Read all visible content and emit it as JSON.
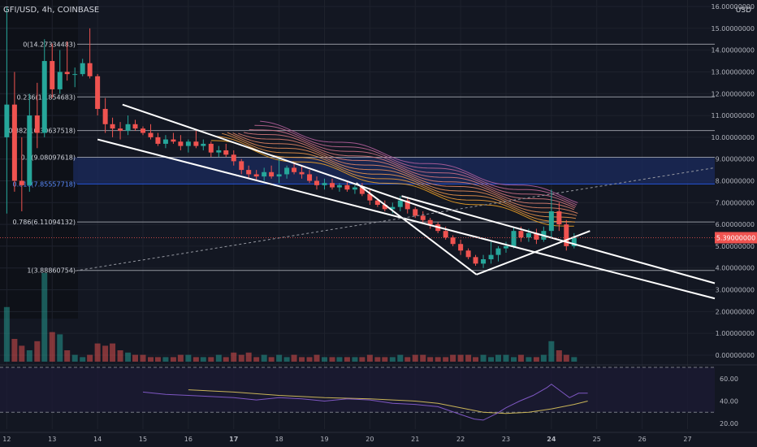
{
  "header": {
    "symbol_label": "GFI/USD, 4h, COINBASE",
    "currency": "USD"
  },
  "colors": {
    "background": "#131722",
    "up": "#26a69a",
    "down": "#ef5350",
    "grid": "#1e222d",
    "fib_line": "#b2b5be",
    "fib_label": "#d1d4dc",
    "fib_label_highlight": "#2962ff",
    "fib_zone": "#1b2b5e",
    "price_tag": "#ef5350",
    "rsi_line": "#7e57c2",
    "rsi_ma": "#c9b458",
    "rsi_band": "#1c1a33",
    "trendline": "#ffffff"
  },
  "price_tag": {
    "value": 5.39,
    "label": "5.39000000"
  },
  "chart_data": {
    "type": "candlestick",
    "title": "GFI/USD, 4h, COINBASE",
    "price_axis": {
      "ticks": [
        {
          "v": 16,
          "label": "16.00000000"
        },
        {
          "v": 15,
          "label": "15.00000000"
        },
        {
          "v": 14,
          "label": "14.00000000"
        },
        {
          "v": 13,
          "label": "13.00000000"
        },
        {
          "v": 12,
          "label": "12.00000000"
        },
        {
          "v": 11,
          "label": "11.00000000"
        },
        {
          "v": 10,
          "label": "10.00000000"
        },
        {
          "v": 9,
          "label": "9.00000000"
        },
        {
          "v": 8,
          "label": "8.00000000"
        },
        {
          "v": 7,
          "label": "7.00000000"
        },
        {
          "v": 6,
          "label": "6.00000000"
        },
        {
          "v": 5,
          "label": "5.00000000"
        },
        {
          "v": 4,
          "label": "4.00000000"
        },
        {
          "v": 3,
          "label": "3.00000000"
        },
        {
          "v": 2,
          "label": "2.00000000"
        },
        {
          "v": 1,
          "label": "1.00000000"
        },
        {
          "v": 0,
          "label": "0.00000000"
        }
      ],
      "range": [
        -0.3,
        16.3
      ]
    },
    "time_axis": {
      "labels": [
        {
          "d": 12,
          "label": "12"
        },
        {
          "d": 13,
          "label": "13"
        },
        {
          "d": 14,
          "label": "14"
        },
        {
          "d": 15,
          "label": "15"
        },
        {
          "d": 16,
          "label": "16"
        },
        {
          "d": 17,
          "label": "17",
          "bold": true
        },
        {
          "d": 18,
          "label": "18"
        },
        {
          "d": 19,
          "label": "19"
        },
        {
          "d": 20,
          "label": "20"
        },
        {
          "d": 21,
          "label": "21"
        },
        {
          "d": 22,
          "label": "22"
        },
        {
          "d": 23,
          "label": "23"
        },
        {
          "d": 24,
          "label": "24",
          "bold": true
        },
        {
          "d": 25,
          "label": "25"
        },
        {
          "d": 26,
          "label": "26"
        },
        {
          "d": 27,
          "label": "27"
        }
      ],
      "range": [
        11.85,
        27.6
      ]
    },
    "fib_levels": [
      {
        "ratio": "0",
        "value": 14.27334483,
        "label": "0(14.27334483)"
      },
      {
        "ratio": "0.236",
        "value": 11.85,
        "label": "0.236(11.854683)"
      },
      {
        "ratio": "0.382",
        "value": 10.30637518,
        "label": "0.382(10.30637518)"
      },
      {
        "ratio": "0.5",
        "value": 9.08097618,
        "label": "0.5(9.08097618)"
      },
      {
        "ratio": "0.618",
        "value": 7.85557718,
        "label": "0.618(7.85557718)",
        "highlight": true
      },
      {
        "ratio": "0.786",
        "value": 6.11094132,
        "label": "0.786(6.11094132)"
      },
      {
        "ratio": "1",
        "value": 3.88860754,
        "label": "1(3.88860754)"
      }
    ],
    "candles": [
      {
        "t": 12.0,
        "o": 10.0,
        "h": 16.0,
        "l": 6.5,
        "c": 11.5
      },
      {
        "t": 12.17,
        "o": 11.5,
        "h": 13.0,
        "l": 7.5,
        "c": 8.0
      },
      {
        "t": 12.33,
        "o": 8.0,
        "h": 10.0,
        "l": 6.6,
        "c": 7.8
      },
      {
        "t": 12.5,
        "o": 7.8,
        "h": 12.0,
        "l": 7.5,
        "c": 11.0
      },
      {
        "t": 12.67,
        "o": 11.0,
        "h": 12.5,
        "l": 9.5,
        "c": 10.2
      },
      {
        "t": 12.83,
        "o": 10.2,
        "h": 14.5,
        "l": 10.0,
        "c": 13.5
      },
      {
        "t": 13.0,
        "o": 13.5,
        "h": 14.3,
        "l": 11.8,
        "c": 12.2
      },
      {
        "t": 13.17,
        "o": 12.2,
        "h": 14.0,
        "l": 12.0,
        "c": 13.0
      },
      {
        "t": 13.33,
        "o": 13.0,
        "h": 14.4,
        "l": 12.6,
        "c": 12.9
      },
      {
        "t": 13.5,
        "o": 12.9,
        "h": 13.2,
        "l": 12.3,
        "c": 12.9
      },
      {
        "t": 13.67,
        "o": 12.9,
        "h": 13.6,
        "l": 12.8,
        "c": 13.4
      },
      {
        "t": 13.83,
        "o": 13.4,
        "h": 15.0,
        "l": 12.7,
        "c": 12.8
      },
      {
        "t": 14.0,
        "o": 12.8,
        "h": 12.9,
        "l": 11.0,
        "c": 11.3
      },
      {
        "t": 14.17,
        "o": 11.3,
        "h": 11.8,
        "l": 10.2,
        "c": 10.6
      },
      {
        "t": 14.33,
        "o": 10.6,
        "h": 10.9,
        "l": 10.0,
        "c": 10.4
      },
      {
        "t": 14.5,
        "o": 10.4,
        "h": 10.7,
        "l": 9.9,
        "c": 10.3
      },
      {
        "t": 14.67,
        "o": 10.3,
        "h": 11.0,
        "l": 10.1,
        "c": 10.6
      },
      {
        "t": 14.83,
        "o": 10.6,
        "h": 10.8,
        "l": 10.3,
        "c": 10.4
      },
      {
        "t": 15.0,
        "o": 10.4,
        "h": 10.5,
        "l": 10.1,
        "c": 10.2
      },
      {
        "t": 15.17,
        "o": 10.2,
        "h": 10.6,
        "l": 9.9,
        "c": 10.0
      },
      {
        "t": 15.33,
        "o": 10.0,
        "h": 10.2,
        "l": 9.6,
        "c": 9.7
      },
      {
        "t": 15.5,
        "o": 9.7,
        "h": 10.1,
        "l": 9.5,
        "c": 9.9
      },
      {
        "t": 15.67,
        "o": 9.9,
        "h": 10.2,
        "l": 9.7,
        "c": 9.8
      },
      {
        "t": 15.83,
        "o": 9.8,
        "h": 10.1,
        "l": 9.4,
        "c": 9.6
      },
      {
        "t": 16.0,
        "o": 9.6,
        "h": 9.9,
        "l": 9.3,
        "c": 9.8
      },
      {
        "t": 16.17,
        "o": 9.8,
        "h": 10.3,
        "l": 9.5,
        "c": 9.6
      },
      {
        "t": 16.33,
        "o": 9.6,
        "h": 9.9,
        "l": 9.4,
        "c": 9.7
      },
      {
        "t": 16.5,
        "o": 9.7,
        "h": 9.8,
        "l": 9.1,
        "c": 9.3
      },
      {
        "t": 16.67,
        "o": 9.3,
        "h": 9.6,
        "l": 9.1,
        "c": 9.4
      },
      {
        "t": 16.83,
        "o": 9.4,
        "h": 9.7,
        "l": 9.1,
        "c": 9.2
      },
      {
        "t": 17.0,
        "o": 9.2,
        "h": 9.4,
        "l": 8.7,
        "c": 8.9
      },
      {
        "t": 17.17,
        "o": 8.9,
        "h": 9.0,
        "l": 8.3,
        "c": 8.5
      },
      {
        "t": 17.33,
        "o": 8.5,
        "h": 8.7,
        "l": 8.1,
        "c": 8.3
      },
      {
        "t": 17.5,
        "o": 8.3,
        "h": 8.5,
        "l": 8.0,
        "c": 8.2
      },
      {
        "t": 17.67,
        "o": 8.2,
        "h": 8.6,
        "l": 8.0,
        "c": 8.4
      },
      {
        "t": 17.83,
        "o": 8.4,
        "h": 8.7,
        "l": 8.1,
        "c": 8.2
      },
      {
        "t": 18.0,
        "o": 8.2,
        "h": 9.1,
        "l": 7.9,
        "c": 8.3
      },
      {
        "t": 18.17,
        "o": 8.3,
        "h": 8.7,
        "l": 8.1,
        "c": 8.6
      },
      {
        "t": 18.33,
        "o": 8.6,
        "h": 8.8,
        "l": 8.3,
        "c": 8.4
      },
      {
        "t": 18.5,
        "o": 8.4,
        "h": 8.7,
        "l": 8.1,
        "c": 8.3
      },
      {
        "t": 18.67,
        "o": 8.3,
        "h": 8.5,
        "l": 7.9,
        "c": 8.0
      },
      {
        "t": 18.83,
        "o": 8.0,
        "h": 8.2,
        "l": 7.6,
        "c": 7.8
      },
      {
        "t": 19.0,
        "o": 7.8,
        "h": 8.1,
        "l": 7.6,
        "c": 7.9
      },
      {
        "t": 19.17,
        "o": 7.9,
        "h": 8.1,
        "l": 7.6,
        "c": 7.7
      },
      {
        "t": 19.33,
        "o": 7.7,
        "h": 7.9,
        "l": 7.5,
        "c": 7.8
      },
      {
        "t": 19.5,
        "o": 7.8,
        "h": 8.0,
        "l": 7.5,
        "c": 7.6
      },
      {
        "t": 19.67,
        "o": 7.6,
        "h": 7.8,
        "l": 7.4,
        "c": 7.7
      },
      {
        "t": 19.83,
        "o": 7.7,
        "h": 7.9,
        "l": 7.3,
        "c": 7.4
      },
      {
        "t": 20.0,
        "o": 7.4,
        "h": 7.6,
        "l": 6.9,
        "c": 7.1
      },
      {
        "t": 20.17,
        "o": 7.1,
        "h": 7.2,
        "l": 6.8,
        "c": 6.9
      },
      {
        "t": 20.33,
        "o": 6.9,
        "h": 7.1,
        "l": 6.6,
        "c": 6.7
      },
      {
        "t": 20.5,
        "o": 6.7,
        "h": 7.0,
        "l": 6.5,
        "c": 6.8
      },
      {
        "t": 20.67,
        "o": 6.8,
        "h": 7.3,
        "l": 6.6,
        "c": 7.1
      },
      {
        "t": 20.83,
        "o": 7.1,
        "h": 7.2,
        "l": 6.5,
        "c": 6.7
      },
      {
        "t": 21.0,
        "o": 6.7,
        "h": 6.8,
        "l": 6.3,
        "c": 6.4
      },
      {
        "t": 21.17,
        "o": 6.4,
        "h": 6.6,
        "l": 6.1,
        "c": 6.2
      },
      {
        "t": 21.33,
        "o": 6.2,
        "h": 6.3,
        "l": 5.8,
        "c": 6.0
      },
      {
        "t": 21.5,
        "o": 6.0,
        "h": 6.1,
        "l": 5.6,
        "c": 5.7
      },
      {
        "t": 21.67,
        "o": 5.7,
        "h": 5.9,
        "l": 5.3,
        "c": 5.4
      },
      {
        "t": 21.83,
        "o": 5.4,
        "h": 5.5,
        "l": 5.0,
        "c": 5.1
      },
      {
        "t": 22.0,
        "o": 5.1,
        "h": 5.3,
        "l": 4.6,
        "c": 4.8
      },
      {
        "t": 22.17,
        "o": 4.8,
        "h": 4.9,
        "l": 4.4,
        "c": 4.5
      },
      {
        "t": 22.33,
        "o": 4.5,
        "h": 4.6,
        "l": 4.1,
        "c": 4.2
      },
      {
        "t": 22.5,
        "o": 4.2,
        "h": 4.6,
        "l": 4.0,
        "c": 4.4
      },
      {
        "t": 22.67,
        "o": 4.4,
        "h": 5.2,
        "l": 4.2,
        "c": 4.6
      },
      {
        "t": 22.83,
        "o": 4.6,
        "h": 5.0,
        "l": 4.3,
        "c": 4.9
      },
      {
        "t": 23.0,
        "o": 4.9,
        "h": 5.2,
        "l": 4.7,
        "c": 5.0
      },
      {
        "t": 23.17,
        "o": 5.0,
        "h": 5.9,
        "l": 4.9,
        "c": 5.7
      },
      {
        "t": 23.33,
        "o": 5.7,
        "h": 5.9,
        "l": 5.2,
        "c": 5.4
      },
      {
        "t": 23.5,
        "o": 5.4,
        "h": 5.8,
        "l": 5.2,
        "c": 5.6
      },
      {
        "t": 23.67,
        "o": 5.6,
        "h": 5.8,
        "l": 5.1,
        "c": 5.3
      },
      {
        "t": 23.83,
        "o": 5.3,
        "h": 5.9,
        "l": 5.2,
        "c": 5.7
      },
      {
        "t": 24.0,
        "o": 5.7,
        "h": 7.6,
        "l": 5.4,
        "c": 6.6
      },
      {
        "t": 24.17,
        "o": 6.6,
        "h": 7.0,
        "l": 5.7,
        "c": 6.0
      },
      {
        "t": 24.33,
        "o": 6.0,
        "h": 6.2,
        "l": 4.8,
        "c": 5.0
      },
      {
        "t": 24.5,
        "o": 5.0,
        "h": 5.6,
        "l": 4.9,
        "c": 5.4
      }
    ],
    "volume": [
      0.5,
      0.4,
      0.4,
      0.5,
      0.4,
      1.8,
      1.7,
      0.8,
      0.5,
      0.3,
      0.2,
      0.3,
      0.8,
      0.7,
      0.8,
      0.5,
      0.4,
      0.3,
      0.3,
      0.2,
      0.2,
      0.2,
      0.2,
      0.3,
      0.3,
      0.2,
      0.2,
      0.2,
      0.3,
      0.2,
      0.4,
      0.3,
      0.4,
      0.2,
      0.3,
      0.2,
      0.3,
      0.2,
      0.3,
      0.2,
      0.2,
      0.3,
      0.2,
      0.2,
      0.2,
      0.2,
      0.2,
      0.2,
      0.3,
      0.2,
      0.2,
      0.2,
      0.3,
      0.2,
      0.3,
      0.3,
      0.2,
      0.2,
      0.2,
      0.3,
      0.3,
      0.3,
      0.2,
      0.3,
      0.2,
      0.3,
      0.3,
      0.2,
      0.3,
      0.2,
      0.2,
      0.3,
      0.9,
      0.5,
      0.3,
      0.2
    ],
    "volume_early": [
      {
        "t": 12.0,
        "v": 2.4
      },
      {
        "t": 12.17,
        "v": 1.0
      },
      {
        "t": 12.33,
        "v": 0.7
      },
      {
        "t": 12.5,
        "v": 0.5
      },
      {
        "t": 12.67,
        "v": 0.9
      },
      {
        "t": 12.83,
        "v": 3.9
      },
      {
        "t": 13.0,
        "v": 1.3
      },
      {
        "t": 13.17,
        "v": 1.2
      }
    ],
    "trendlines": [
      {
        "from": [
          14.55,
          11.5
        ],
        "to": [
          22.0,
          6.2
        ]
      },
      {
        "from": [
          14.0,
          9.9
        ],
        "to": [
          27.6,
          2.6
        ]
      },
      {
        "from": [
          19.7,
          7.9
        ],
        "to": [
          22.35,
          3.7
        ]
      },
      {
        "from": [
          22.35,
          3.7
        ],
        "to": [
          24.85,
          5.7
        ]
      },
      {
        "from": [
          20.7,
          7.3
        ],
        "to": [
          27.6,
          3.3
        ]
      }
    ],
    "dotted_line": {
      "from": [
        13.3,
        3.8
      ],
      "to": [
        27.6,
        8.6
      ]
    },
    "ribbon": {
      "start_t": 16.5,
      "end_t": 24.6,
      "offsets": [
        0.0,
        0.35,
        0.7,
        1.05,
        1.4,
        1.75,
        2.1,
        2.45,
        2.8,
        3.15
      ],
      "colors": [
        "#f9a825",
        "#f6a03a",
        "#f39a4c",
        "#ef925a",
        "#ea8a66",
        "#e48272",
        "#dc7a7e",
        "#d2728a",
        "#c76a96",
        "#bb63a2"
      ]
    },
    "rsi": {
      "ticks": [
        {
          "v": 60,
          "label": "60.00"
        },
        {
          "v": 40,
          "label": "40.00"
        },
        {
          "v": 20,
          "label": "20.00"
        }
      ],
      "range": [
        15,
        70
      ],
      "bands": [
        70,
        30
      ],
      "line": [
        [
          15.0,
          48
        ],
        [
          15.5,
          46
        ],
        [
          16.0,
          45
        ],
        [
          16.5,
          44
        ],
        [
          17.0,
          43
        ],
        [
          17.5,
          41
        ],
        [
          18.0,
          43
        ],
        [
          18.5,
          42
        ],
        [
          19.0,
          40
        ],
        [
          19.5,
          42
        ],
        [
          20.0,
          41
        ],
        [
          20.5,
          38
        ],
        [
          21.0,
          37
        ],
        [
          21.5,
          35
        ],
        [
          22.0,
          28
        ],
        [
          22.3,
          24
        ],
        [
          22.5,
          23
        ],
        [
          22.8,
          29
        ],
        [
          23.0,
          34
        ],
        [
          23.3,
          40
        ],
        [
          23.6,
          45
        ],
        [
          23.9,
          52
        ],
        [
          24.0,
          55
        ],
        [
          24.2,
          49
        ],
        [
          24.4,
          43
        ],
        [
          24.6,
          47
        ],
        [
          24.8,
          47
        ]
      ],
      "ma": [
        [
          16.0,
          50
        ],
        [
          17.0,
          48
        ],
        [
          18.0,
          45
        ],
        [
          19.0,
          43
        ],
        [
          20.0,
          42
        ],
        [
          21.0,
          40
        ],
        [
          21.5,
          38
        ],
        [
          22.0,
          34
        ],
        [
          22.5,
          30
        ],
        [
          23.0,
          29
        ],
        [
          23.5,
          30
        ],
        [
          24.0,
          33
        ],
        [
          24.5,
          37
        ],
        [
          24.8,
          40
        ]
      ]
    }
  }
}
